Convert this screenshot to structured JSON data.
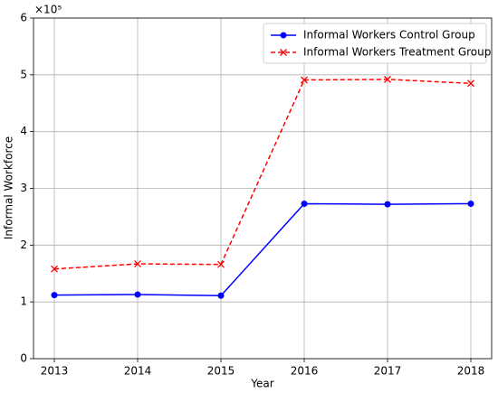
{
  "chart_data": {
    "type": "line",
    "x_label": "Year",
    "y_label": "Informal Workforce",
    "y_multiplier": "×10⁵",
    "x": [
      2013,
      2014,
      2015,
      2016,
      2017,
      2018
    ],
    "series": [
      {
        "name": "Informal Workers Control Group",
        "color": "#0000ff",
        "marker": "circle",
        "dash": false,
        "values": [
          1.12,
          1.13,
          1.11,
          2.73,
          2.72,
          2.73
        ]
      },
      {
        "name": "Informal Workers Treatment Group",
        "color": "#ff0000",
        "marker": "x",
        "dash": true,
        "values": [
          1.58,
          1.67,
          1.66,
          4.91,
          4.92,
          4.85
        ]
      }
    ],
    "xlim": [
      2012.75,
      2018.25
    ],
    "xticks": [
      2013,
      2014,
      2015,
      2016,
      2017,
      2018
    ],
    "ylim": [
      0,
      6
    ],
    "yticks": [
      0,
      1,
      2,
      3,
      4,
      5,
      6
    ],
    "grid": true,
    "legend": "upper-right"
  }
}
